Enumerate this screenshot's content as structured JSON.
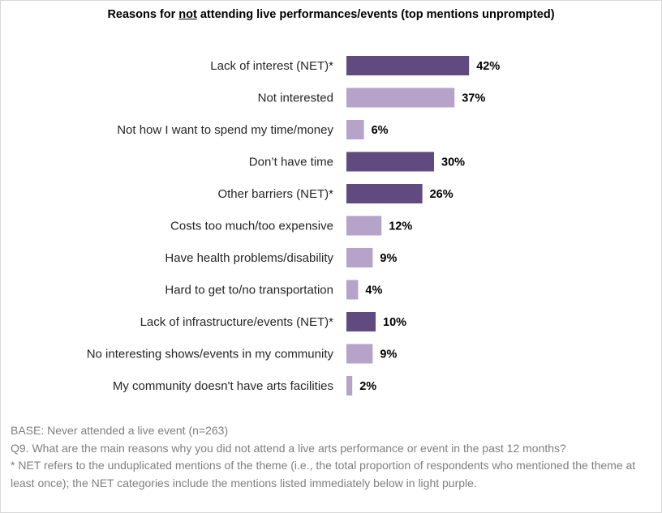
{
  "title": {
    "before": "Reasons for ",
    "underlined": "not",
    "after": " attending live performances/events (top mentions unprompted)"
  },
  "chart_data": {
    "type": "bar",
    "orientation": "horizontal",
    "categories": [
      "Lack of interest (NET)*",
      "Not interested",
      "Not how I want to spend my time/money",
      "Don’t have time",
      "Other barriers (NET)*",
      "Costs too much/too expensive",
      "Have health problems/disability",
      "Hard to get to/no transportation",
      "Lack of infrastructure/events (NET)*",
      "No interesting shows/events in my community",
      "My community doesn't have arts facilities"
    ],
    "values": [
      42,
      37,
      6,
      30,
      26,
      12,
      9,
      4,
      10,
      9,
      2
    ],
    "value_labels": [
      "42%",
      "37%",
      "6%",
      "30%",
      "26%",
      "12%",
      "9%",
      "4%",
      "10%",
      "9%",
      "2%"
    ],
    "is_net": [
      true,
      false,
      false,
      true,
      true,
      false,
      false,
      false,
      true,
      false,
      false
    ],
    "colors": {
      "net": "#5f4b7f",
      "sub": "#b5a3c9"
    },
    "unit": "%",
    "grid": false,
    "legend": "none"
  },
  "notes": {
    "base": "BASE: Never attended a live event (n=263)",
    "question": "Q9. What are the main reasons why you did not attend a live arts performance or event in the past 12 months?",
    "footnote": "* NET refers to the unduplicated mentions of the theme (i.e., the total proportion of respondents who mentioned the theme at least once); the NET categories include the mentions listed immediately below in light purple."
  }
}
